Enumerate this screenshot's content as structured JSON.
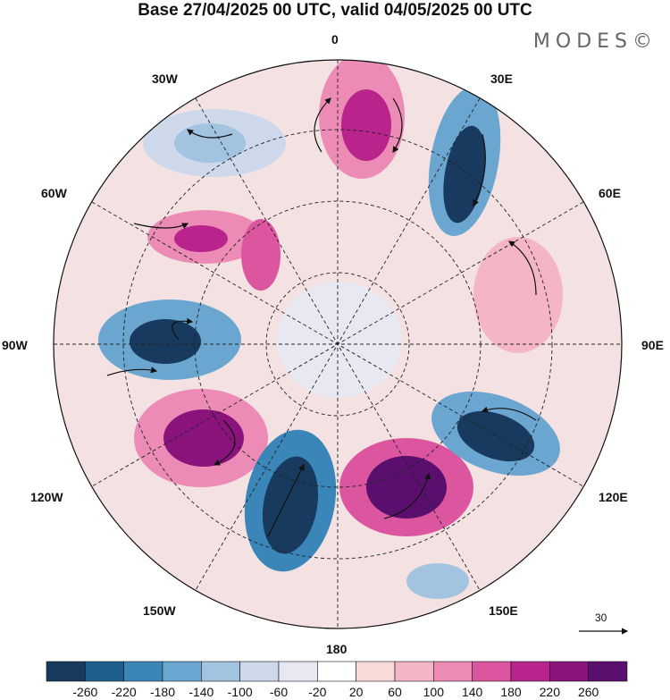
{
  "title": "Base 27/04/2025 00 UTC, valid 04/05/2025 00 UTC",
  "brand": "MODES©",
  "longitude_labels": {
    "lon_0": "0",
    "lon_30e": "30E",
    "lon_60e": "60E",
    "lon_90e": "90E",
    "lon_120e": "120E",
    "lon_150e": "150E",
    "lon_180": "180",
    "lon_150w": "150W",
    "lon_120w": "120W",
    "lon_90w": "90W",
    "lon_60w": "60W",
    "lon_30w": "30W"
  },
  "reference_vector": {
    "value": "30"
  },
  "colorbar": {
    "ticks": [
      "-260",
      "-220",
      "-180",
      "-140",
      "-100",
      "-60",
      "-20",
      "20",
      "60",
      "100",
      "140",
      "180",
      "220",
      "260"
    ],
    "colors": [
      "#173a5e",
      "#1f5f8f",
      "#3a86b8",
      "#6aa6cf",
      "#a3c4e0",
      "#cdd9ea",
      "#e8e8f2",
      "#ffffff",
      "#f8dad9",
      "#f4b6c6",
      "#ec8cb6",
      "#dc569f",
      "#b8248b",
      "#8a137c",
      "#5a0f6e"
    ]
  }
}
